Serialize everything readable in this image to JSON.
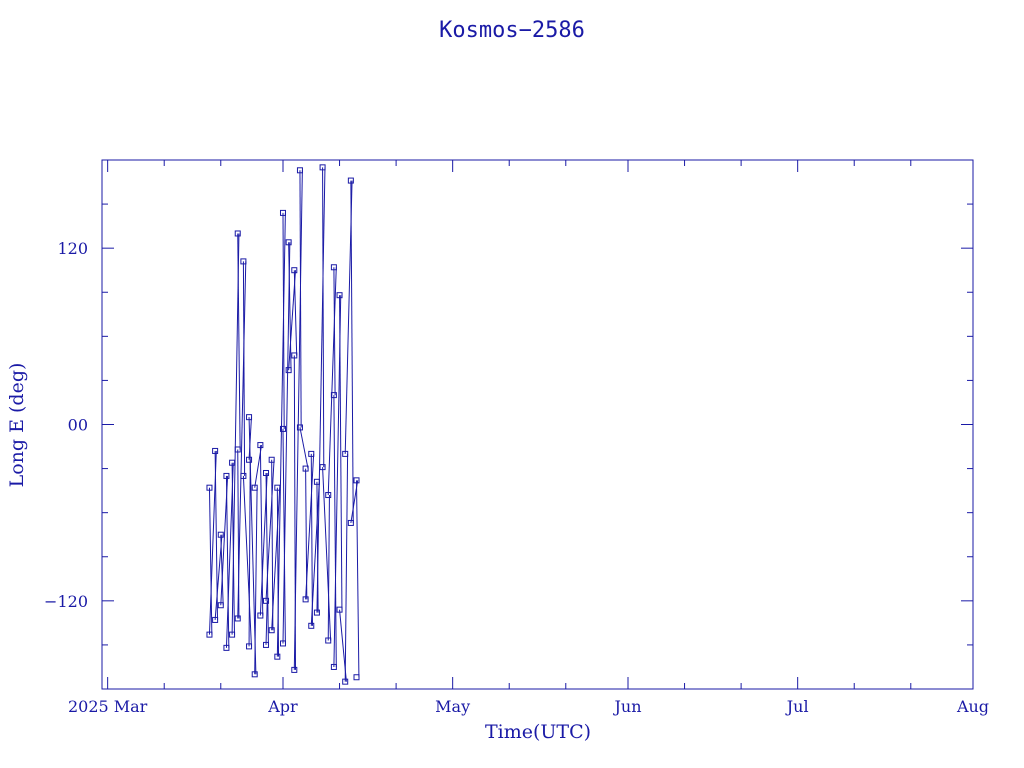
{
  "chart_data": {
    "type": "line",
    "title": "Kosmos−2586",
    "xlabel": "Time(UTC)",
    "ylabel": "Long E (deg)",
    "x_range": [
      "2025-02-28",
      "2025-08-01"
    ],
    "ylim": [
      -180,
      180
    ],
    "x_ticks": [
      {
        "date": "2025-03-01",
        "label": "2025 Mar"
      },
      {
        "date": "2025-04-01",
        "label": "Apr"
      },
      {
        "date": "2025-05-01",
        "label": "May"
      },
      {
        "date": "2025-06-01",
        "label": "Jun"
      },
      {
        "date": "2025-07-01",
        "label": "Jul"
      },
      {
        "date": "2025-08-01",
        "label": "Aug"
      }
    ],
    "y_ticks": [
      {
        "value": 120,
        "label": "120"
      },
      {
        "value": 0,
        "label": "00"
      },
      {
        "value": -120,
        "label": "−120"
      }
    ],
    "marker": "square",
    "color": "#1a1aa6",
    "series": [
      {
        "values": [
          {
            "x": "2025-03-19",
            "y": -43
          },
          {
            "x": "2025-03-19",
            "y": -143
          },
          {
            "x": "2025-03-20",
            "y": -18
          },
          {
            "x": "2025-03-20",
            "y": -133
          },
          {
            "x": "2025-03-21",
            "y": -75
          },
          {
            "x": "2025-03-21",
            "y": -123
          },
          {
            "x": "2025-03-22",
            "y": -35
          },
          {
            "x": "2025-03-22",
            "y": -152
          },
          {
            "x": "2025-03-23",
            "y": -26
          },
          {
            "x": "2025-03-23",
            "y": -143
          },
          {
            "x": "2025-03-24",
            "y": 130
          },
          {
            "x": "2025-03-24",
            "y": -17
          },
          {
            "x": "2025-03-24",
            "y": -132
          },
          {
            "x": "2025-03-25",
            "y": 111
          },
          {
            "x": "2025-03-25",
            "y": -35
          },
          {
            "x": "2025-03-26",
            "y": -151
          },
          {
            "x": "2025-03-26",
            "y": -24
          },
          {
            "x": "2025-03-26",
            "y": 5
          },
          {
            "x": "2025-03-27",
            "y": -170
          },
          {
            "x": "2025-03-27",
            "y": -43
          },
          {
            "x": "2025-03-28",
            "y": -14
          },
          {
            "x": "2025-03-28",
            "y": -130
          },
          {
            "x": "2025-03-29",
            "y": -33
          },
          {
            "x": "2025-03-29",
            "y": -150
          },
          {
            "x": "2025-03-29",
            "y": -120
          },
          {
            "x": "2025-03-30",
            "y": -24
          },
          {
            "x": "2025-03-30",
            "y": -140
          },
          {
            "x": "2025-03-31",
            "y": -43
          },
          {
            "x": "2025-03-31",
            "y": -158
          },
          {
            "x": "2025-04-01",
            "y": 144
          },
          {
            "x": "2025-04-01",
            "y": -3
          },
          {
            "x": "2025-04-01",
            "y": -149
          },
          {
            "x": "2025-04-02",
            "y": 124
          },
          {
            "x": "2025-04-02",
            "y": 37
          },
          {
            "x": "2025-04-03",
            "y": 105
          },
          {
            "x": "2025-04-03",
            "y": 47
          },
          {
            "x": "2025-04-03",
            "y": -167
          },
          {
            "x": "2025-04-04",
            "y": 173
          },
          {
            "x": "2025-04-04",
            "y": -2
          },
          {
            "x": "2025-04-05",
            "y": -30
          },
          {
            "x": "2025-04-05",
            "y": -119
          },
          {
            "x": "2025-04-06",
            "y": -20
          },
          {
            "x": "2025-04-06",
            "y": -137
          },
          {
            "x": "2025-04-07",
            "y": -39
          },
          {
            "x": "2025-04-07",
            "y": -128
          },
          {
            "x": "2025-04-08",
            "y": 175
          },
          {
            "x": "2025-04-08",
            "y": -29
          },
          {
            "x": "2025-04-09",
            "y": -147
          },
          {
            "x": "2025-04-09",
            "y": -48
          },
          {
            "x": "2025-04-10",
            "y": 107
          },
          {
            "x": "2025-04-10",
            "y": 20
          },
          {
            "x": "2025-04-10",
            "y": -165
          },
          {
            "x": "2025-04-11",
            "y": 88
          },
          {
            "x": "2025-04-11",
            "y": -126
          },
          {
            "x": "2025-04-12",
            "y": -175
          },
          {
            "x": "2025-04-12",
            "y": -20
          },
          {
            "x": "2025-04-13",
            "y": 166
          },
          {
            "x": "2025-04-13",
            "y": -67
          },
          {
            "x": "2025-04-14",
            "y": -38
          },
          {
            "x": "2025-04-14",
            "y": -172
          }
        ]
      }
    ]
  }
}
